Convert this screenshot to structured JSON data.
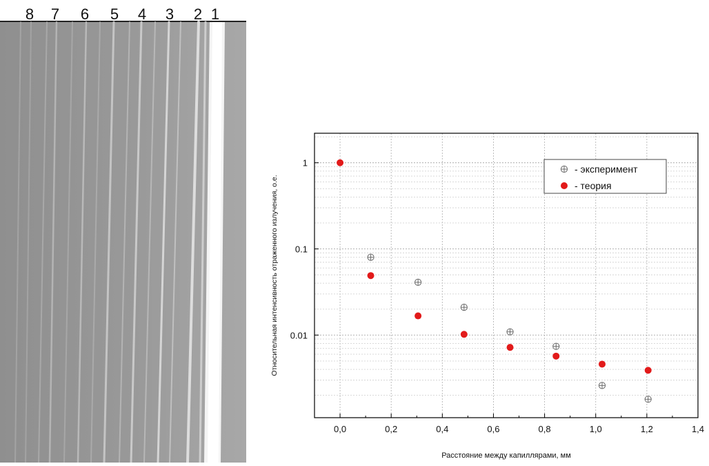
{
  "xray_image": {
    "capillary_labels": [
      "8",
      "7",
      "6",
      "5",
      "4",
      "3",
      "2",
      "1"
    ]
  },
  "chart_data": {
    "type": "scatter",
    "title": "",
    "xlabel": "Расстояние между капиллярами, мм",
    "ylabel": "Относительная интенсивность отраженного излучения, о.е.",
    "xlim": [
      -0.1,
      1.4
    ],
    "ylim": [
      0.0011,
      2.2
    ],
    "yscale": "log",
    "grid": true,
    "x_ticks": [
      0.0,
      0.2,
      0.4,
      0.6,
      0.8,
      1.0,
      1.2,
      1.4
    ],
    "x_tick_labels": [
      "0,0",
      "0,2",
      "0,4",
      "0,6",
      "0,8",
      "1,0",
      "1,2",
      "1,4"
    ],
    "y_ticks": [
      1,
      0.1,
      0.01
    ],
    "y_tick_labels": [
      "1",
      "0.1",
      "0.01"
    ],
    "legend_position": "top-right",
    "series": [
      {
        "name": "- эксперимент",
        "marker": "circle-cross",
        "color": "#6a6a6a",
        "x": [
          0.12,
          0.305,
          0.485,
          0.665,
          0.845,
          1.025,
          1.205
        ],
        "y": [
          0.08,
          0.041,
          0.021,
          0.0109,
          0.0074,
          0.0026,
          0.0018
        ]
      },
      {
        "name": "- теория",
        "marker": "filled-circle",
        "color": "#e21a1a",
        "x": [
          0.0,
          0.12,
          0.305,
          0.485,
          0.665,
          0.845,
          1.025,
          1.205
        ],
        "y": [
          1.0,
          0.049,
          0.0167,
          0.0102,
          0.0072,
          0.0057,
          0.0046,
          0.0039
        ]
      }
    ]
  }
}
